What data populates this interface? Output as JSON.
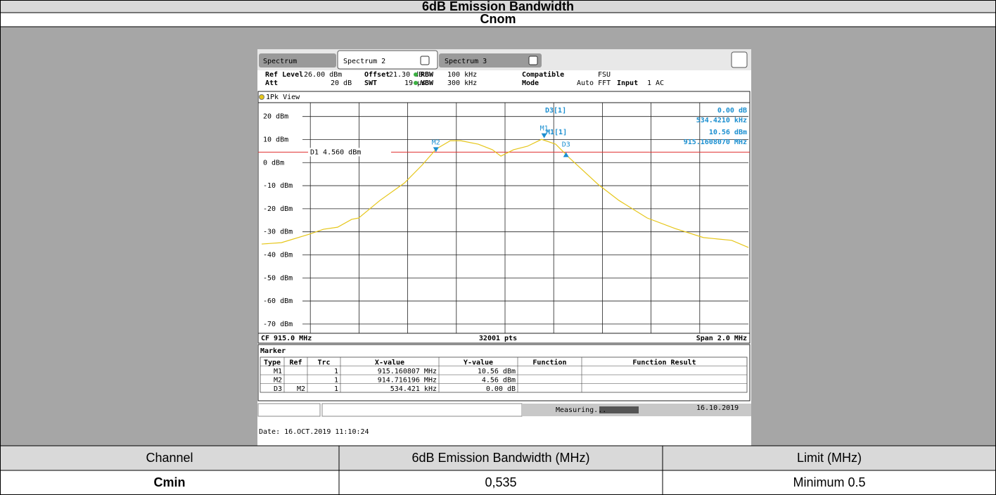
{
  "header": {
    "title": "6dB Emission Bandwidth",
    "subtitle": "Cnom"
  },
  "screen": {
    "tabs": [
      "Spectrum",
      "Spectrum 2",
      "Spectrum 3"
    ],
    "settings": [
      [
        {
          "label": "Ref Level",
          "value": "26.00 dBm"
        },
        {
          "label": "Offset",
          "value": "21.30 dB"
        },
        {
          "label": "RBW",
          "value": "100 kHz"
        },
        {
          "label": "Compatible",
          "value": "FSU"
        }
      ],
      [
        {
          "label": "Att",
          "value": "20 dB"
        },
        {
          "label": "SWT",
          "value": "19 µs"
        },
        {
          "label": "VBW",
          "value": "300 kHz"
        },
        {
          "label": "Mode",
          "value": "Auto FFT"
        },
        {
          "label": "Input",
          "value": "1 AC"
        }
      ]
    ],
    "view": "1Pk View",
    "footer": {
      "left": "CF 915.0 MHz",
      "center": "32001 pts",
      "right": "Span 2.0 MHz"
    },
    "marker_title": "Marker",
    "marker_columns": [
      "Type",
      "Ref",
      "Trc",
      "X-value",
      "Y-value",
      "Function",
      "Function Result"
    ],
    "marker_rows": [
      {
        "type": "M1",
        "trc": "1",
        "x": "915.160807 MHz",
        "y": "10.56 dBm"
      },
      {
        "type": "M2",
        "trc": "1",
        "x": "914.716196 MHz",
        "y": "4.56 dBm"
      },
      {
        "type": "D3",
        "ref": "M2",
        "trc": "1",
        "x": "534.421 kHz",
        "y": "0.00 dB"
      }
    ],
    "status": "Measuring...",
    "status_date": "16.10.2019",
    "date": "Date: 16.OCT.2019 11:10:24"
  },
  "chart_data": {
    "type": "line",
    "xlim": [
      914.0,
      916.0
    ],
    "ylim": [
      -74,
      26
    ],
    "xticks": [
      914.2,
      914.4,
      914.6,
      914.8,
      915.0,
      915.2,
      915.4,
      915.6,
      915.8
    ],
    "yticks": [
      {
        "value": 20,
        "label": "20 dBm"
      },
      {
        "value": 10,
        "label": "10 dBm"
      },
      {
        "value": 0,
        "label": "0 dBm"
      },
      {
        "value": -10,
        "label": "-10 dBm"
      },
      {
        "value": -20,
        "label": "-20 dBm"
      },
      {
        "value": -30,
        "label": "-30 dBm"
      },
      {
        "value": -40,
        "label": "-40 dBm"
      },
      {
        "value": -50,
        "label": "-50 dBm"
      },
      {
        "value": -60,
        "label": "-60 dBm"
      },
      {
        "value": -70,
        "label": "-70 dBm"
      }
    ],
    "grid": true,
    "x": [
      914.0,
      914.081,
      914.197,
      914.254,
      914.312,
      914.37,
      914.399,
      914.486,
      914.587,
      914.659,
      914.717,
      914.775,
      914.818,
      914.89,
      914.948,
      914.983,
      915.035,
      915.092,
      915.15,
      915.208,
      915.266,
      915.382,
      915.468,
      915.584,
      915.699,
      915.815,
      915.873,
      915.931,
      916.0
    ],
    "series": [
      {
        "color": "#e6c619",
        "values": [
          -35.3,
          -34.7,
          -31.0,
          -28.9,
          -28.0,
          -24.6,
          -24.0,
          -16.4,
          -8.8,
          -1.1,
          5.9,
          9.5,
          9.5,
          8.0,
          5.6,
          2.8,
          5.6,
          7.1,
          10.1,
          8.0,
          1.9,
          -9.4,
          -16.4,
          -24.0,
          -28.6,
          -32.5,
          -33.1,
          -33.7,
          -36.8
        ]
      }
    ],
    "threshold": {
      "label": "D1 4.560 dBm",
      "value": 4.56,
      "color": "#e03030"
    },
    "markers": [
      {
        "label": "M1",
        "x": 915.160807,
        "y": 10.56,
        "direction": "down"
      },
      {
        "label": "M2",
        "x": 914.716196,
        "y": 4.56,
        "direction": "down"
      },
      {
        "label": "D3",
        "x": 915.250617,
        "y": 4.56,
        "direction": "up"
      }
    ],
    "marker_color": "#1b8fd0",
    "readout": [
      "D3[1]",
      "0.00 dB",
      "534.4210 kHz",
      "M1[1]",
      "10.56 dBm",
      "915.1608070 MHz"
    ]
  },
  "table": {
    "headers": [
      "Channel",
      "6dB Emission Bandwidth (MHz)",
      "Limit (MHz)"
    ],
    "rows": [
      [
        "Cmin",
        "0,535",
        "Minimum 0.5"
      ]
    ]
  }
}
